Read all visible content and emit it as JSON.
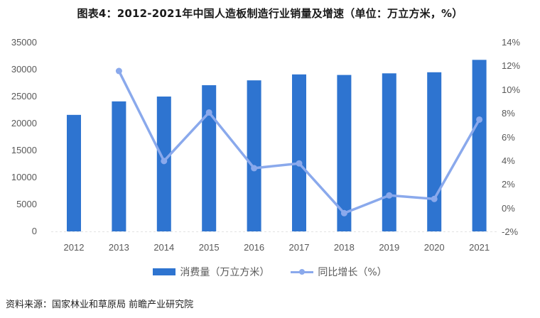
{
  "title": "图表4：2012-2021年中国人造板制造行业销量及增速（单位：万立方米，%）",
  "source": "资料来源：国家林业和草原局 前瞻产业研究院",
  "colors": {
    "bar": "#2e74d0",
    "line": "#8aa9ec",
    "axis_text": "#595959"
  },
  "left_axis": {
    "ticks": [
      "35000",
      "30000",
      "25000",
      "20000",
      "15000",
      "10000",
      "5000",
      "0"
    ]
  },
  "right_axis": {
    "ticks": [
      "14%",
      "12%",
      "10%",
      "8%",
      "6%",
      "4%",
      "2%",
      "0%",
      "-2%"
    ]
  },
  "x_axis": {
    "ticks": [
      "2012",
      "2013",
      "2014",
      "2015",
      "2016",
      "2017",
      "2018",
      "2019",
      "2020",
      "2021"
    ]
  },
  "legend": {
    "bar_label": "消费量（万立方米）",
    "line_label": "同比增长（%）"
  },
  "chart_data": {
    "type": "bar",
    "title": "图表4：2012-2021年中国人造板制造行业销量及增速（单位：万立方米，%）",
    "categories": [
      "2012",
      "2013",
      "2014",
      "2015",
      "2016",
      "2017",
      "2018",
      "2019",
      "2020",
      "2021"
    ],
    "series": [
      {
        "name": "消费量（万立方米）",
        "type": "bar",
        "axis": "left",
        "values": [
          21600,
          24100,
          25000,
          27100,
          28000,
          29100,
          29000,
          29300,
          29500,
          31800
        ]
      },
      {
        "name": "同比增长（%）",
        "type": "line",
        "axis": "right",
        "values": [
          null,
          11.6,
          4.0,
          8.1,
          3.4,
          3.8,
          -0.4,
          1.1,
          0.8,
          7.5
        ]
      }
    ],
    "xlabel": "",
    "ylabel": "",
    "y2label": "",
    "ylim": [
      0,
      35000
    ],
    "y2lim": [
      -2,
      14
    ],
    "grid": false,
    "legend_position": "bottom"
  }
}
